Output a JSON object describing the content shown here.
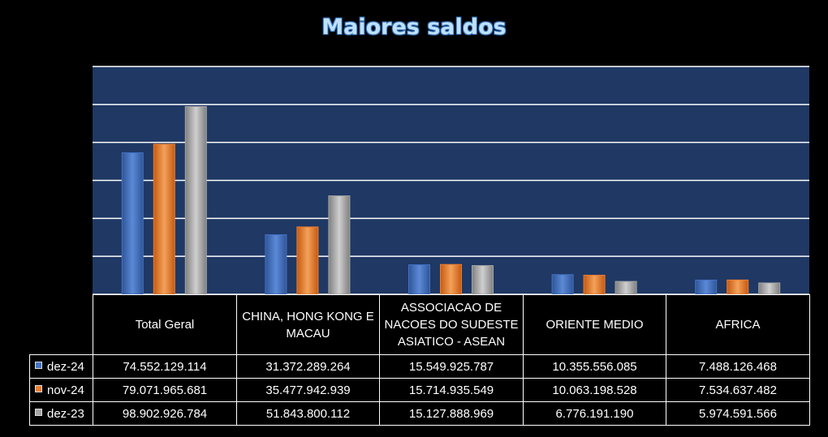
{
  "title": "Maiores saldos",
  "colors": {
    "plot_bg": "#1f3864",
    "grid": "#ffffff",
    "series": [
      "#4472c4",
      "#ed7d31",
      "#a5a5a5"
    ]
  },
  "chart_data": {
    "type": "bar",
    "title": "Maiores saldos",
    "xlabel": "",
    "ylabel": "",
    "ylim": [
      0,
      120000000000
    ],
    "grid": true,
    "legend": "data-table",
    "categories": [
      "Total Geral",
      "CHINA, HONG KONG E MACAU",
      "ASSOCIACAO DE NACOES DO SUDESTE ASIATICO - ASEAN",
      "ORIENTE MEDIO",
      "AFRICA"
    ],
    "series": [
      {
        "name": "dez-24",
        "values": [
          74552129114,
          31372289264,
          15549925787,
          10355556085,
          7488126468
        ],
        "labels": [
          "74.552.129.114",
          "31.372.289.264",
          "15.549.925.787",
          "10.355.556.085",
          "7.488.126.468"
        ]
      },
      {
        "name": "nov-24",
        "values": [
          79071965681,
          35477942939,
          15714935549,
          10063198528,
          7534637482
        ],
        "labels": [
          "79.071.965.681",
          "35.477.942.939",
          "15.714.935.549",
          "10.063.198.528",
          "7.534.637.482"
        ]
      },
      {
        "name": "dez-23",
        "values": [
          98902926784,
          51843800112,
          15127888969,
          6776191190,
          5974591566
        ],
        "labels": [
          "98.902.926.784",
          "51.843.800.112",
          "15.127.888.969",
          "6.776.191.190",
          "5.974.591.566"
        ]
      }
    ]
  }
}
